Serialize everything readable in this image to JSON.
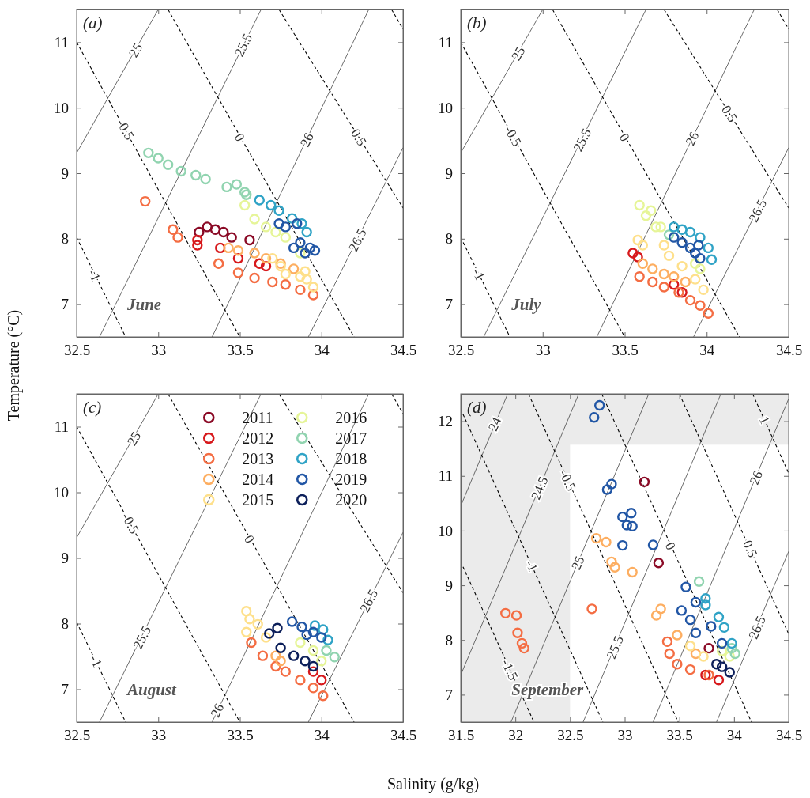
{
  "chart_data": [
    {
      "type": "scatter",
      "marker": "circle",
      "ylabel": "Temperature (°C)",
      "xlim": [
        32.5,
        34.5
      ],
      "ylim": [
        6.5,
        11.5
      ],
      "xticks": [
        32.5,
        33,
        33.5,
        34,
        34.5
      ],
      "yticks": [
        7,
        8,
        9,
        10,
        11
      ],
      "legend": false,
      "annotations": [
        "(a)",
        "June",
        {
          "text": "25",
          "x": 32.86,
          "y": 10.88
        },
        {
          "text": "25.5",
          "x": 33.52,
          "y": 10.96
        },
        {
          "text": "-0.5",
          "x": 32.8,
          "y": 9.67
        },
        {
          "text": "0",
          "x": 33.5,
          "y": 9.55
        },
        {
          "text": "26",
          "x": 33.91,
          "y": 9.51
        },
        {
          "text": "0.5",
          "x": 34.23,
          "y": 9.55
        },
        {
          "text": "26.5",
          "x": 34.22,
          "y": 7.98
        },
        {
          "text": "-1",
          "x": 32.61,
          "y": 7.44
        }
      ],
      "series": [
        {
          "type": "line",
          "color": "#444444",
          "line_style": "solid",
          "marker": "none",
          "x": [
            32.5,
            33.0
          ],
          "values": [
            9.31,
            11.5
          ]
        },
        {
          "type": "line",
          "color": "#444444",
          "line_style": "solid",
          "marker": "none",
          "x": [
            32.64,
            33.63
          ],
          "values": [
            6.5,
            11.5
          ]
        },
        {
          "type": "line",
          "color": "#444444",
          "line_style": "solid",
          "marker": "none",
          "x": [
            33.33,
            34.29
          ],
          "values": [
            6.5,
            11.5
          ]
        },
        {
          "type": "line",
          "color": "#444444",
          "line_style": "solid",
          "marker": "none",
          "x": [
            33.92,
            34.5
          ],
          "values": [
            6.5,
            9.39
          ]
        },
        {
          "type": "line",
          "color": "#000000",
          "line_style": "dashed",
          "marker": "none",
          "x": [
            32.5,
            32.8
          ],
          "values": [
            8.02,
            6.5
          ]
        },
        {
          "type": "line",
          "color": "#000000",
          "line_style": "dashed",
          "marker": "none",
          "x": [
            32.5,
            33.5
          ],
          "values": [
            11.0,
            6.5
          ]
        },
        {
          "type": "line",
          "color": "#000000",
          "line_style": "dashed",
          "marker": "none",
          "x": [
            33.06,
            34.2
          ],
          "values": [
            11.5,
            6.5
          ]
        },
        {
          "type": "line",
          "color": "#000000",
          "line_style": "dashed",
          "marker": "none",
          "x": [
            33.74,
            34.5
          ],
          "values": [
            11.5,
            8.47
          ]
        },
        {
          "type": "line",
          "color": "#000000",
          "line_style": "dashed",
          "marker": "none",
          "x": [
            34.43,
            34.5
          ],
          "values": [
            11.5,
            11.2
          ]
        },
        {
          "color": "#8b0a26",
          "x": [
            33.25,
            33.3,
            33.35,
            33.4,
            33.45,
            33.56
          ],
          "values": [
            8.1,
            8.18,
            8.14,
            8.1,
            8.02,
            7.98
          ]
        },
        {
          "color": "#d7191c",
          "x": [
            33.24,
            33.24,
            33.38,
            33.49,
            33.62,
            33.66
          ],
          "values": [
            7.98,
            7.9,
            7.86,
            7.7,
            7.62,
            7.58
          ]
        },
        {
          "color": "#f46d43",
          "x": [
            32.92,
            33.09,
            33.12,
            33.37,
            33.49,
            33.59,
            33.7,
            33.78,
            33.87,
            33.95
          ],
          "values": [
            8.57,
            8.14,
            8.02,
            7.62,
            7.48,
            7.4,
            7.34,
            7.3,
            7.22,
            7.14
          ]
        },
        {
          "color": "#fdae61",
          "x": [
            33.43,
            33.49,
            33.59,
            33.66,
            33.75,
            33.83
          ],
          "values": [
            7.86,
            7.82,
            7.78,
            7.7,
            7.62,
            7.54
          ]
        },
        {
          "color": "#fee08b",
          "x": [
            33.7,
            33.75,
            33.78,
            33.87,
            33.91,
            33.95,
            33.9
          ],
          "values": [
            7.7,
            7.58,
            7.46,
            7.42,
            7.38,
            7.26,
            7.5
          ]
        },
        {
          "color": "#e6f598",
          "x": [
            33.53,
            33.59,
            33.66,
            33.72,
            33.78,
            33.87
          ],
          "values": [
            8.51,
            8.3,
            8.18,
            8.1,
            8.02,
            7.78
          ]
        },
        {
          "color": "#91d4b0",
          "x": [
            32.94,
            33.0,
            33.06,
            33.14,
            33.23,
            33.29,
            33.42,
            33.48,
            33.53,
            33.54
          ],
          "values": [
            9.31,
            9.23,
            9.13,
            9.03,
            8.97,
            8.91,
            8.79,
            8.83,
            8.71,
            8.67
          ]
        },
        {
          "color": "#2fa3c6",
          "x": [
            33.62,
            33.69,
            33.74,
            33.82,
            33.88,
            33.91
          ],
          "values": [
            8.59,
            8.51,
            8.43,
            8.31,
            8.23,
            8.1
          ]
        },
        {
          "color": "#2156a5",
          "x": [
            33.74,
            33.78,
            33.85,
            33.87,
            33.93,
            33.96,
            33.83,
            33.9
          ],
          "values": [
            8.23,
            8.18,
            8.23,
            7.94,
            7.86,
            7.82,
            7.86,
            7.78
          ]
        }
      ]
    },
    {
      "type": "scatter",
      "marker": "circle",
      "xlim": [
        32.5,
        34.5
      ],
      "ylim": [
        6.5,
        11.5
      ],
      "xticks": [
        32.5,
        33,
        33.5,
        34,
        34.5
      ],
      "yticks": [
        7,
        8,
        9,
        10,
        11
      ],
      "legend": false,
      "annotations": [
        "(b)",
        "July",
        {
          "text": "25",
          "x": 32.85,
          "y": 10.83
        },
        {
          "text": "-0.5",
          "x": 32.82,
          "y": 9.57
        },
        {
          "text": "25.5",
          "x": 33.24,
          "y": 9.51
        },
        {
          "text": "0",
          "x": 33.5,
          "y": 9.55
        },
        {
          "text": "26",
          "x": 33.91,
          "y": 9.53
        },
        {
          "text": "0.5",
          "x": 34.14,
          "y": 9.91
        },
        {
          "text": "26.5",
          "x": 34.31,
          "y": 8.43
        },
        {
          "text": "-1",
          "x": 32.61,
          "y": 7.46
        }
      ],
      "series": [
        {
          "type": "line",
          "color": "#444444",
          "line_style": "solid",
          "marker": "none",
          "x": [
            32.5,
            33.0
          ],
          "values": [
            9.31,
            11.5
          ]
        },
        {
          "type": "line",
          "color": "#444444",
          "line_style": "solid",
          "marker": "none",
          "x": [
            32.64,
            33.63
          ],
          "values": [
            6.5,
            11.5
          ]
        },
        {
          "type": "line",
          "color": "#444444",
          "line_style": "solid",
          "marker": "none",
          "x": [
            33.33,
            34.29
          ],
          "values": [
            6.5,
            11.5
          ]
        },
        {
          "type": "line",
          "color": "#444444",
          "line_style": "solid",
          "marker": "none",
          "x": [
            33.92,
            34.5
          ],
          "values": [
            6.5,
            9.39
          ]
        },
        {
          "type": "line",
          "color": "#000000",
          "line_style": "dashed",
          "marker": "none",
          "x": [
            32.5,
            32.8
          ],
          "values": [
            8.02,
            6.5
          ]
        },
        {
          "type": "line",
          "color": "#000000",
          "line_style": "dashed",
          "marker": "none",
          "x": [
            32.5,
            33.5
          ],
          "values": [
            11.0,
            6.5
          ]
        },
        {
          "type": "line",
          "color": "#000000",
          "line_style": "dashed",
          "marker": "none",
          "x": [
            33.06,
            34.2
          ],
          "values": [
            11.5,
            6.5
          ]
        },
        {
          "type": "line",
          "color": "#000000",
          "line_style": "dashed",
          "marker": "none",
          "x": [
            33.74,
            34.5
          ],
          "values": [
            11.5,
            8.47
          ]
        },
        {
          "type": "line",
          "color": "#000000",
          "line_style": "dashed",
          "marker": "none",
          "x": [
            34.43,
            34.5
          ],
          "values": [
            11.5,
            11.2
          ]
        },
        {
          "color": "#d7191c",
          "x": [
            33.55,
            33.58,
            33.8,
            33.85
          ],
          "values": [
            7.78,
            7.72,
            7.3,
            7.18
          ]
        },
        {
          "color": "#f46d43",
          "x": [
            33.59,
            33.67,
            33.74,
            33.83,
            33.9,
            33.96,
            34.01
          ],
          "values": [
            7.42,
            7.34,
            7.26,
            7.18,
            7.06,
            6.98,
            6.86
          ]
        },
        {
          "color": "#fdae61",
          "x": [
            33.61,
            33.67,
            33.74,
            33.8,
            33.87
          ],
          "values": [
            7.62,
            7.54,
            7.46,
            7.42,
            7.34
          ]
        },
        {
          "color": "#fee08b",
          "x": [
            33.58,
            33.61,
            33.74,
            33.77,
            33.85,
            33.93,
            33.98
          ],
          "values": [
            7.98,
            7.9,
            7.9,
            7.74,
            7.58,
            7.38,
            7.22
          ]
        },
        {
          "color": "#e6f598",
          "x": [
            33.59,
            33.63,
            33.66,
            33.69,
            33.72,
            33.93,
            33.96
          ],
          "values": [
            8.51,
            8.35,
            8.43,
            8.18,
            8.18,
            7.62,
            7.54
          ]
        },
        {
          "color": "#91d4b0",
          "x": [
            33.77
          ],
          "values": [
            8.06
          ]
        },
        {
          "color": "#2fa3c6",
          "x": [
            33.8,
            33.85,
            33.9,
            33.96,
            34.01,
            34.03
          ],
          "values": [
            8.18,
            8.14,
            8.1,
            8.02,
            7.86,
            7.68
          ]
        },
        {
          "color": "#2156a5",
          "x": [
            33.8,
            33.85,
            33.9,
            33.93,
            33.96,
            33.95
          ],
          "values": [
            8.02,
            7.94,
            7.86,
            7.78,
            7.7,
            7.9
          ]
        }
      ]
    },
    {
      "type": "scatter",
      "marker": "circle",
      "xlabel": "Salinity (g/kg)",
      "xlim": [
        32.5,
        34.5
      ],
      "ylim": [
        6.5,
        11.5
      ],
      "xticks": [
        32.5,
        33,
        33.5,
        34,
        34.5
      ],
      "yticks": [
        7,
        8,
        9,
        10,
        11
      ],
      "legend": "top",
      "annotations": [
        "(c)",
        "August",
        {
          "text": "25",
          "x": 32.85,
          "y": 10.82
        },
        {
          "text": "-0.5",
          "x": 32.83,
          "y": 9.53
        },
        {
          "text": "0",
          "x": 33.56,
          "y": 9.29
        },
        {
          "text": "26.5",
          "x": 34.29,
          "y": 8.35
        },
        {
          "text": "25.5",
          "x": 32.9,
          "y": 7.79
        },
        {
          "text": "-1",
          "x": 32.62,
          "y": 7.43
        },
        {
          "text": "26",
          "x": 33.36,
          "y": 6.68
        }
      ],
      "series": [
        {
          "type": "line",
          "color": "#444444",
          "line_style": "solid",
          "marker": "none",
          "x": [
            32.5,
            33.0
          ],
          "values": [
            9.31,
            11.5
          ]
        },
        {
          "type": "line",
          "color": "#444444",
          "line_style": "solid",
          "marker": "none",
          "x": [
            32.64,
            33.63
          ],
          "values": [
            6.5,
            11.5
          ]
        },
        {
          "type": "line",
          "color": "#444444",
          "line_style": "solid",
          "marker": "none",
          "x": [
            33.33,
            34.29
          ],
          "values": [
            6.5,
            11.5
          ]
        },
        {
          "type": "line",
          "color": "#444444",
          "line_style": "solid",
          "marker": "none",
          "x": [
            33.92,
            34.5
          ],
          "values": [
            6.5,
            9.39
          ]
        },
        {
          "type": "line",
          "color": "#000000",
          "line_style": "dashed",
          "marker": "none",
          "x": [
            32.5,
            32.8
          ],
          "values": [
            8.02,
            6.5
          ]
        },
        {
          "type": "line",
          "color": "#000000",
          "line_style": "dashed",
          "marker": "none",
          "x": [
            32.5,
            33.5
          ],
          "values": [
            11.0,
            6.5
          ]
        },
        {
          "type": "line",
          "color": "#000000",
          "line_style": "dashed",
          "marker": "none",
          "x": [
            33.06,
            34.2
          ],
          "values": [
            11.5,
            6.5
          ]
        },
        {
          "type": "line",
          "color": "#000000",
          "line_style": "dashed",
          "marker": "none",
          "x": [
            33.74,
            34.5
          ],
          "values": [
            11.5,
            8.47
          ]
        },
        {
          "type": "line",
          "color": "#000000",
          "line_style": "dashed",
          "marker": "none",
          "x": [
            34.43,
            34.5
          ],
          "values": [
            11.5,
            11.2
          ]
        },
        {
          "name": "2011",
          "color": "#8b0a26"
        },
        {
          "name": "2012",
          "color": "#d7191c",
          "x": [
            33.95,
            34.0
          ],
          "values": [
            7.27,
            7.14
          ]
        },
        {
          "name": "2013",
          "color": "#f46d43",
          "x": [
            33.57,
            33.64,
            33.72,
            33.78,
            33.87,
            33.95,
            34.01
          ],
          "values": [
            7.71,
            7.51,
            7.35,
            7.27,
            7.14,
            7.02,
            6.9
          ]
        },
        {
          "name": "2014",
          "color": "#fdae61",
          "x": [
            33.72,
            33.75
          ],
          "values": [
            7.51,
            7.43
          ]
        },
        {
          "name": "2015",
          "color": "#fee08b",
          "x": [
            33.54,
            33.56,
            33.54,
            33.61,
            33.66
          ],
          "values": [
            8.19,
            8.07,
            7.87,
            7.99,
            7.79
          ]
        },
        {
          "name": "2016",
          "color": "#e6f598",
          "x": [
            33.87,
            33.95,
            34.0
          ],
          "values": [
            7.71,
            7.59,
            7.43
          ]
        },
        {
          "name": "2017",
          "color": "#91d4b0",
          "x": [
            34.03,
            34.08
          ],
          "values": [
            7.59,
            7.49
          ]
        },
        {
          "name": "2018",
          "color": "#2fa3c6",
          "x": [
            33.96,
            34.01,
            34.04
          ],
          "values": [
            7.97,
            7.91,
            7.75
          ]
        },
        {
          "name": "2019",
          "color": "#2156a5",
          "x": [
            33.82,
            33.88,
            33.95,
            34.0,
            33.91
          ],
          "values": [
            8.03,
            7.95,
            7.87,
            7.79,
            7.83
          ]
        },
        {
          "name": "2020",
          "color": "#0c1f5a",
          "x": [
            33.68,
            33.73,
            33.75,
            33.83,
            33.9,
            33.95
          ],
          "values": [
            7.85,
            7.93,
            7.63,
            7.51,
            7.43,
            7.35
          ]
        }
      ]
    },
    {
      "type": "scatter",
      "marker": "circle",
      "xlim": [
        31.5,
        34.5
      ],
      "ylim": [
        6.5,
        12.5
      ],
      "xticks": [
        31.5,
        32,
        32.5,
        33,
        33.5,
        34,
        34.5
      ],
      "yticks": [
        7,
        8,
        9,
        10,
        11,
        12
      ],
      "legend": false,
      "bands": [
        {
          "axis": "x",
          "from": 31.5,
          "to": 32.5,
          "color": "#ebebeb"
        },
        {
          "axis": "y",
          "from": 11.57,
          "to": 12.5,
          "color": "#ebebeb"
        }
      ],
      "annotations": [
        "(d)",
        "September",
        {
          "text": "24",
          "x": 31.81,
          "y": 11.95
        },
        {
          "text": "24.5",
          "x": 32.22,
          "y": 10.78
        },
        {
          "text": "-0.5",
          "x": 32.48,
          "y": 10.92
        },
        {
          "text": "25",
          "x": 32.57,
          "y": 9.41
        },
        {
          "text": "-1",
          "x": 32.15,
          "y": 9.36
        },
        {
          "text": "-1.5",
          "x": 31.95,
          "y": 7.46
        },
        {
          "text": "25.5",
          "x": 32.91,
          "y": 7.87
        },
        {
          "text": "0",
          "x": 33.42,
          "y": 9.72
        },
        {
          "text": "0.5",
          "x": 34.15,
          "y": 9.67
        },
        {
          "text": "26",
          "x": 34.2,
          "y": 10.97
        },
        {
          "text": "26.5",
          "x": 34.21,
          "y": 8.23
        },
        {
          "text": "1",
          "x": 34.28,
          "y": 12.02
        }
      ],
      "series": [
        {
          "type": "line",
          "color": "#444444",
          "line_style": "solid",
          "marker": "none",
          "x": [
            31.93,
            31.5
          ],
          "values": [
            12.5,
            10.45
          ]
        },
        {
          "type": "line",
          "color": "#444444",
          "line_style": "solid",
          "marker": "none",
          "x": [
            32.58,
            31.5
          ],
          "values": [
            12.5,
            7.36
          ]
        },
        {
          "type": "line",
          "color": "#444444",
          "line_style": "solid",
          "marker": "none",
          "x": [
            33.22,
            31.96
          ],
          "values": [
            12.5,
            6.5
          ]
        },
        {
          "type": "line",
          "color": "#444444",
          "line_style": "solid",
          "marker": "none",
          "x": [
            33.88,
            32.62
          ],
          "values": [
            12.5,
            6.5
          ]
        },
        {
          "type": "line",
          "color": "#444444",
          "line_style": "solid",
          "marker": "none",
          "x": [
            34.5,
            33.26
          ],
          "values": [
            12.41,
            6.5
          ]
        },
        {
          "type": "line",
          "color": "#444444",
          "line_style": "solid",
          "marker": "none",
          "x": [
            34.5,
            33.84
          ],
          "values": [
            9.62,
            6.5
          ]
        },
        {
          "type": "line",
          "color": "#000000",
          "line_style": "dashed",
          "marker": "none",
          "x": [
            31.5,
            32.17
          ],
          "values": [
            9.43,
            6.5
          ]
        },
        {
          "type": "line",
          "color": "#000000",
          "line_style": "dashed",
          "marker": "none",
          "x": [
            31.5,
            32.8
          ],
          "values": [
            12.22,
            6.5
          ]
        },
        {
          "type": "line",
          "color": "#000000",
          "line_style": "dashed",
          "marker": "none",
          "x": [
            32.12,
            33.49
          ],
          "values": [
            12.5,
            6.5
          ]
        },
        {
          "type": "line",
          "color": "#000000",
          "line_style": "dashed",
          "marker": "none",
          "x": [
            32.79,
            34.16
          ],
          "values": [
            12.5,
            6.5
          ]
        },
        {
          "type": "line",
          "color": "#000000",
          "line_style": "dashed",
          "marker": "none",
          "x": [
            33.5,
            34.5
          ],
          "values": [
            12.5,
            8.11
          ]
        },
        {
          "type": "line",
          "color": "#000000",
          "line_style": "dashed",
          "marker": "none",
          "x": [
            34.17,
            34.5
          ],
          "values": [
            12.5,
            11.05
          ]
        },
        {
          "color": "#8b0a26",
          "x": [
            33.18,
            33.31,
            33.77
          ],
          "values": [
            10.89,
            9.41,
            7.85
          ]
        },
        {
          "color": "#d7191c",
          "x": [
            33.86,
            33.74
          ],
          "values": [
            7.27,
            7.36
          ]
        },
        {
          "color": "#f46d43",
          "x": [
            31.91,
            32.01,
            32.02,
            32.06,
            32.08,
            32.7,
            33.39,
            33.41,
            33.48,
            33.6,
            33.77
          ],
          "values": [
            8.49,
            8.45,
            8.13,
            7.94,
            7.85,
            8.57,
            7.97,
            7.75,
            7.56,
            7.46,
            7.36
          ]
        },
        {
          "color": "#fdae61",
          "x": [
            32.74,
            32.83,
            32.88,
            32.91,
            33.07,
            33.33,
            33.29,
            33.48,
            33.65
          ],
          "values": [
            9.86,
            9.79,
            9.43,
            9.33,
            9.24,
            8.57,
            8.45,
            8.09,
            7.75
          ]
        },
        {
          "color": "#fee08b",
          "x": [
            33.6,
            33.72
          ],
          "values": [
            7.89,
            7.7
          ]
        },
        {
          "color": "#e6f598",
          "x": [
            33.96,
            33.89
          ],
          "values": [
            7.7,
            7.8
          ]
        },
        {
          "color": "#91d4b0",
          "x": [
            33.68,
            34.01,
            33.98
          ],
          "values": [
            9.07,
            7.75,
            7.85
          ]
        },
        {
          "color": "#2fa3c6",
          "x": [
            33.74,
            33.74,
            33.86,
            33.91,
            33.98
          ],
          "values": [
            8.76,
            8.64,
            8.42,
            8.23,
            7.94
          ]
        },
        {
          "color": "#2156a5",
          "x": [
            32.77,
            32.72,
            32.88,
            32.84,
            32.98,
            33.06,
            33.02,
            33.07,
            32.98,
            33.26,
            33.56,
            33.65,
            33.52,
            33.6,
            33.65,
            33.79,
            33.89
          ],
          "values": [
            12.29,
            12.07,
            10.85,
            10.75,
            10.25,
            10.32,
            10.1,
            10.08,
            9.73,
            9.74,
            8.97,
            8.69,
            8.54,
            8.37,
            8.13,
            8.25,
            7.94
          ]
        },
        {
          "color": "#0c1f5a",
          "x": [
            33.89,
            33.96,
            33.84
          ],
          "values": [
            7.51,
            7.41,
            7.56
          ]
        }
      ]
    }
  ]
}
